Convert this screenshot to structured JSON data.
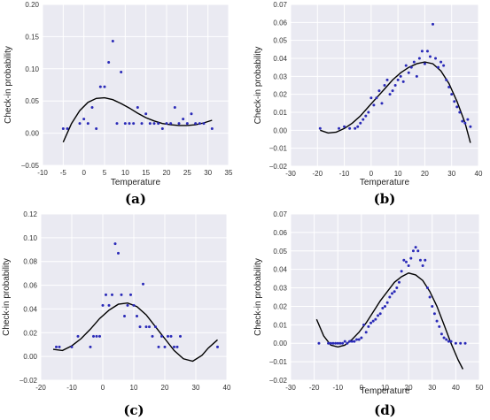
{
  "colors": {
    "plot_bg": "#eaeaf2",
    "grid": "#ffffff",
    "points": "#2a2ab8",
    "fit_line": "#000000"
  },
  "chart_data": [
    {
      "type": "scatter",
      "panel_label": "(a)",
      "xlabel": "Temperature",
      "ylabel": "Check-in probability",
      "xlim": [
        -10,
        35
      ],
      "ylim": [
        -0.05,
        0.2
      ],
      "xticks": [
        -10,
        -5,
        0,
        5,
        10,
        15,
        20,
        25,
        30,
        35
      ],
      "yticks": [
        -0.05,
        0.0,
        0.05,
        0.1,
        0.15,
        0.2
      ],
      "ytick_labels": [
        "−0.05",
        "0.00",
        "0.05",
        "0.10",
        "0.15",
        "0.20"
      ],
      "grid": true,
      "points": [
        [
          -5,
          0.007
        ],
        [
          -4,
          0.007
        ],
        [
          -1,
          0.015
        ],
        [
          0,
          0.022
        ],
        [
          1,
          0.015
        ],
        [
          2,
          0.04
        ],
        [
          3,
          0.007
        ],
        [
          4,
          0.072
        ],
        [
          5,
          0.072
        ],
        [
          6,
          0.11
        ],
        [
          7,
          0.143
        ],
        [
          8,
          0.015
        ],
        [
          9,
          0.095
        ],
        [
          10,
          0.015
        ],
        [
          11,
          0.015
        ],
        [
          12,
          0.015
        ],
        [
          13,
          0.04
        ],
        [
          14,
          0.015
        ],
        [
          15,
          0.03
        ],
        [
          16,
          0.015
        ],
        [
          17,
          0.015
        ],
        [
          18,
          0.015
        ],
        [
          19,
          0.007
        ],
        [
          20,
          0.015
        ],
        [
          21,
          0.015
        ],
        [
          22,
          0.04
        ],
        [
          23,
          0.015
        ],
        [
          24,
          0.022
        ],
        [
          25,
          0.015
        ],
        [
          26,
          0.03
        ],
        [
          27,
          0.015
        ],
        [
          28,
          0.015
        ],
        [
          29,
          0.015
        ],
        [
          31,
          0.007
        ]
      ],
      "fit": [
        [
          -5,
          -0.014
        ],
        [
          -3,
          0.015
        ],
        [
          -1,
          0.035
        ],
        [
          1,
          0.048
        ],
        [
          3,
          0.054
        ],
        [
          5,
          0.055
        ],
        [
          7,
          0.052
        ],
        [
          9,
          0.046
        ],
        [
          11,
          0.039
        ],
        [
          13,
          0.031
        ],
        [
          15,
          0.024
        ],
        [
          17,
          0.019
        ],
        [
          19,
          0.015
        ],
        [
          21,
          0.013
        ],
        [
          23,
          0.012
        ],
        [
          25,
          0.012
        ],
        [
          27,
          0.013
        ],
        [
          29,
          0.016
        ],
        [
          31,
          0.02
        ]
      ]
    },
    {
      "type": "scatter",
      "panel_label": "(b)",
      "xlabel": "Temperature",
      "ylabel": "Check-in probability",
      "xlim": [
        -30,
        40
      ],
      "ylim": [
        -0.02,
        0.07
      ],
      "xticks": [
        -30,
        -20,
        -10,
        0,
        10,
        20,
        30,
        40
      ],
      "yticks": [
        -0.02,
        -0.01,
        0.0,
        0.01,
        0.02,
        0.03,
        0.04,
        0.05,
        0.06,
        0.07
      ],
      "ytick_labels": [
        "−0.02",
        "−0.01",
        "0.00",
        "0.01",
        "0.02",
        "0.03",
        "0.04",
        "0.05",
        "0.06",
        "0.07"
      ],
      "grid": true,
      "points": [
        [
          -19,
          0.001
        ],
        [
          -12,
          0.001
        ],
        [
          -10,
          0.002
        ],
        [
          -8,
          0.001
        ],
        [
          -6,
          0.001
        ],
        [
          -5,
          0.002
        ],
        [
          -4,
          0.004
        ],
        [
          -3,
          0.006
        ],
        [
          -2,
          0.008
        ],
        [
          -1,
          0.01
        ],
        [
          0,
          0.018
        ],
        [
          1,
          0.014
        ],
        [
          2,
          0.018
        ],
        [
          3,
          0.022
        ],
        [
          4,
          0.015
        ],
        [
          5,
          0.025
        ],
        [
          6,
          0.028
        ],
        [
          7,
          0.02
        ],
        [
          8,
          0.022
        ],
        [
          9,
          0.025
        ],
        [
          10,
          0.028
        ],
        [
          11,
          0.03
        ],
        [
          12,
          0.027
        ],
        [
          13,
          0.036
        ],
        [
          14,
          0.032
        ],
        [
          15,
          0.035
        ],
        [
          16,
          0.038
        ],
        [
          17,
          0.03
        ],
        [
          18,
          0.04
        ],
        [
          19,
          0.044
        ],
        [
          20,
          0.037
        ],
        [
          21,
          0.044
        ],
        [
          22,
          0.041
        ],
        [
          23,
          0.059
        ],
        [
          24,
          0.04
        ],
        [
          25,
          0.035
        ],
        [
          26,
          0.038
        ],
        [
          27,
          0.036
        ],
        [
          28,
          0.028
        ],
        [
          29,
          0.024
        ],
        [
          30,
          0.02
        ],
        [
          31,
          0.016
        ],
        [
          32,
          0.013
        ],
        [
          33,
          0.01
        ],
        [
          34,
          0.005
        ],
        [
          35,
          0.004
        ],
        [
          36,
          0.006
        ],
        [
          37,
          0.002
        ]
      ],
      "fit": [
        [
          -19,
          0.0
        ],
        [
          -16,
          -0.0015
        ],
        [
          -13,
          -0.001
        ],
        [
          -10,
          0.001
        ],
        [
          -7,
          0.004
        ],
        [
          -4,
          0.008
        ],
        [
          -1,
          0.013
        ],
        [
          2,
          0.018
        ],
        [
          5,
          0.023
        ],
        [
          8,
          0.028
        ],
        [
          11,
          0.032
        ],
        [
          14,
          0.035
        ],
        [
          17,
          0.037
        ],
        [
          20,
          0.038
        ],
        [
          23,
          0.037
        ],
        [
          26,
          0.033
        ],
        [
          29,
          0.026
        ],
        [
          32,
          0.016
        ],
        [
          35,
          0.004
        ],
        [
          37,
          -0.007
        ]
      ]
    },
    {
      "type": "scatter",
      "panel_label": "(c)",
      "xlabel": "",
      "ylabel": "Check-in probability",
      "xlim": [
        -20,
        40
      ],
      "ylim": [
        -0.02,
        0.12
      ],
      "xticks": [
        -20,
        -10,
        0,
        10,
        20,
        30,
        40
      ],
      "yticks": [
        -0.02,
        0.0,
        0.02,
        0.04,
        0.06,
        0.08,
        0.1,
        0.12
      ],
      "ytick_labels": [
        "−0.02",
        "0.00",
        "0.02",
        "0.04",
        "0.06",
        "0.08",
        "0.10",
        "0.12"
      ],
      "grid": true,
      "points": [
        [
          -15,
          0.008
        ],
        [
          -14,
          0.008
        ],
        [
          -10,
          0.008
        ],
        [
          -8,
          0.017
        ],
        [
          -4,
          0.008
        ],
        [
          -3,
          0.017
        ],
        [
          -2,
          0.017
        ],
        [
          -1,
          0.017
        ],
        [
          0,
          0.043
        ],
        [
          1,
          0.052
        ],
        [
          2,
          0.043
        ],
        [
          3,
          0.052
        ],
        [
          4,
          0.095
        ],
        [
          5,
          0.087
        ],
        [
          6,
          0.052
        ],
        [
          7,
          0.034
        ],
        [
          8,
          0.043
        ],
        [
          9,
          0.052
        ],
        [
          10,
          0.043
        ],
        [
          11,
          0.034
        ],
        [
          12,
          0.025
        ],
        [
          13,
          0.061
        ],
        [
          14,
          0.025
        ],
        [
          15,
          0.025
        ],
        [
          16,
          0.017
        ],
        [
          17,
          0.025
        ],
        [
          18,
          0.008
        ],
        [
          19,
          0.017
        ],
        [
          20,
          0.008
        ],
        [
          21,
          0.017
        ],
        [
          22,
          0.017
        ],
        [
          23,
          0.008
        ],
        [
          24,
          0.008
        ],
        [
          25,
          0.017
        ],
        [
          37,
          0.008
        ]
      ],
      "fit": [
        [
          -16,
          0.006
        ],
        [
          -13,
          0.005
        ],
        [
          -10,
          0.009
        ],
        [
          -7,
          0.015
        ],
        [
          -4,
          0.023
        ],
        [
          -1,
          0.032
        ],
        [
          2,
          0.039
        ],
        [
          5,
          0.044
        ],
        [
          8,
          0.045
        ],
        [
          11,
          0.042
        ],
        [
          14,
          0.035
        ],
        [
          17,
          0.025
        ],
        [
          20,
          0.015
        ],
        [
          23,
          0.005
        ],
        [
          26,
          -0.002
        ],
        [
          29,
          -0.004
        ],
        [
          32,
          0.001
        ],
        [
          34,
          0.007
        ],
        [
          37,
          0.014
        ]
      ]
    },
    {
      "type": "scatter",
      "panel_label": "(d)",
      "xlabel": "Temperature",
      "ylabel": "Check-in probability",
      "xlim": [
        -30,
        50
      ],
      "ylim": [
        -0.02,
        0.07
      ],
      "xticks": [
        -30,
        -20,
        -10,
        0,
        10,
        20,
        30,
        40,
        50
      ],
      "yticks": [
        -0.02,
        -0.01,
        0.0,
        0.01,
        0.02,
        0.03,
        0.04,
        0.05,
        0.06,
        0.07
      ],
      "ytick_labels": [
        "−0.02",
        "−0.01",
        "0.00",
        "0.01",
        "0.02",
        "0.03",
        "0.04",
        "0.05",
        "0.06",
        "0.07"
      ],
      "grid": true,
      "points": [
        [
          -18,
          0.0
        ],
        [
          -14,
          0.0
        ],
        [
          -13,
          0.0
        ],
        [
          -12,
          0.0
        ],
        [
          -11,
          0.0
        ],
        [
          -10,
          0.0
        ],
        [
          -9,
          0.0
        ],
        [
          -8,
          0.0
        ],
        [
          -7,
          0.001
        ],
        [
          -6,
          0.0
        ],
        [
          -5,
          0.001
        ],
        [
          -4,
          0.001
        ],
        [
          -3,
          0.001
        ],
        [
          -2,
          0.002
        ],
        [
          -1,
          0.002
        ],
        [
          0,
          0.003
        ],
        [
          1,
          0.01
        ],
        [
          2,
          0.006
        ],
        [
          3,
          0.009
        ],
        [
          4,
          0.011
        ],
        [
          5,
          0.012
        ],
        [
          6,
          0.013
        ],
        [
          7,
          0.015
        ],
        [
          8,
          0.016
        ],
        [
          9,
          0.019
        ],
        [
          10,
          0.02
        ],
        [
          11,
          0.022
        ],
        [
          12,
          0.025
        ],
        [
          13,
          0.027
        ],
        [
          14,
          0.028
        ],
        [
          15,
          0.03
        ],
        [
          16,
          0.033
        ],
        [
          17,
          0.039
        ],
        [
          18,
          0.045
        ],
        [
          19,
          0.044
        ],
        [
          20,
          0.042
        ],
        [
          21,
          0.046
        ],
        [
          22,
          0.05
        ],
        [
          23,
          0.052
        ],
        [
          24,
          0.05
        ],
        [
          25,
          0.045
        ],
        [
          26,
          0.042
        ],
        [
          27,
          0.045
        ],
        [
          28,
          0.03
        ],
        [
          29,
          0.025
        ],
        [
          30,
          0.02
        ],
        [
          31,
          0.016
        ],
        [
          32,
          0.012
        ],
        [
          33,
          0.009
        ],
        [
          34,
          0.005
        ],
        [
          35,
          0.003
        ],
        [
          36,
          0.002
        ],
        [
          37,
          0.001
        ],
        [
          38,
          0.001
        ],
        [
          40,
          0.0
        ],
        [
          42,
          0.0
        ],
        [
          44,
          0.0
        ]
      ],
      "fit": [
        [
          -19,
          0.013
        ],
        [
          -16,
          0.004
        ],
        [
          -13,
          -0.001
        ],
        [
          -10,
          -0.002
        ],
        [
          -7,
          -0.001
        ],
        [
          -4,
          0.002
        ],
        [
          -1,
          0.006
        ],
        [
          2,
          0.011
        ],
        [
          5,
          0.017
        ],
        [
          8,
          0.023
        ],
        [
          11,
          0.028
        ],
        [
          14,
          0.033
        ],
        [
          17,
          0.036
        ],
        [
          20,
          0.038
        ],
        [
          23,
          0.037
        ],
        [
          26,
          0.034
        ],
        [
          29,
          0.028
        ],
        [
          32,
          0.02
        ],
        [
          35,
          0.01
        ],
        [
          38,
          0.0
        ],
        [
          41,
          -0.009
        ],
        [
          43,
          -0.014
        ]
      ]
    }
  ]
}
